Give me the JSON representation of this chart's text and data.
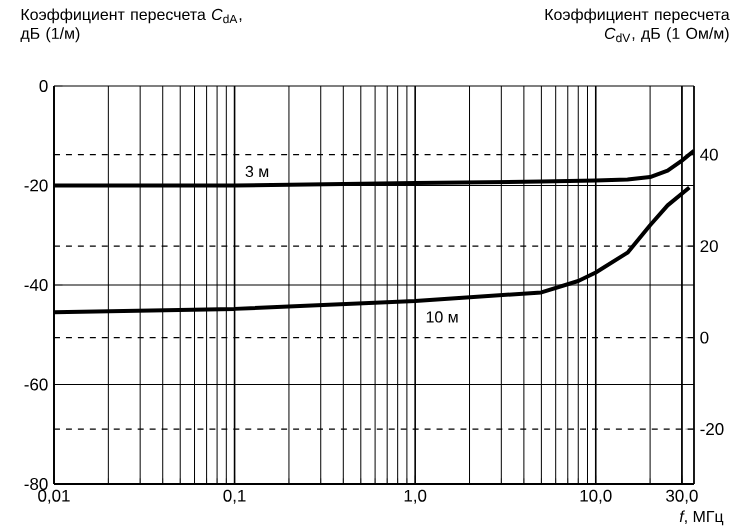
{
  "chart_data": {
    "type": "line",
    "log": "x",
    "ylabel": "Коэффициент пересчета *C*$_{dA}$, дБ (1/м)",
    "y2label": "Коэффициент пересчета *C*$_{dV}$, дБ (1 Ом/м)",
    "xlabel": "*f*, МГц",
    "xlim": [
      0.01,
      35
    ],
    "xticks": [
      {
        "value": 0.01,
        "label": "0,01"
      },
      {
        "value": 0.1,
        "label": "0,1"
      },
      {
        "value": 1,
        "label": "1,0"
      },
      {
        "value": 10,
        "label": "10,0"
      },
      {
        "value": 30,
        "label": "30,0"
      }
    ],
    "ylim": [
      -80,
      0
    ],
    "yticks": [
      -80,
      -60,
      -40,
      -20,
      0
    ],
    "y2lim": [
      -32,
      55
    ],
    "y2ticks": [
      -20,
      0,
      20,
      40
    ],
    "grid": true,
    "marker": "none",
    "line_style": "solid",
    "series": [
      {
        "name": "3 м",
        "color": "#000000",
        "x": [
          0.01,
          0.1,
          1,
          5,
          10,
          15,
          20,
          25,
          30,
          35
        ],
        "values": [
          -20,
          -20,
          -19.5,
          -19.2,
          -19,
          -18.8,
          -18.3,
          -17,
          -15,
          -13
        ]
      },
      {
        "name": "10 м",
        "color": "#000000",
        "x": [
          0.01,
          0.1,
          1,
          5,
          8,
          10,
          15,
          20,
          25,
          33
        ],
        "values": [
          -45.5,
          -44.8,
          -43.2,
          -41.5,
          -39.2,
          -37.5,
          -33.5,
          -28,
          -24,
          -20.4
        ]
      }
    ]
  }
}
